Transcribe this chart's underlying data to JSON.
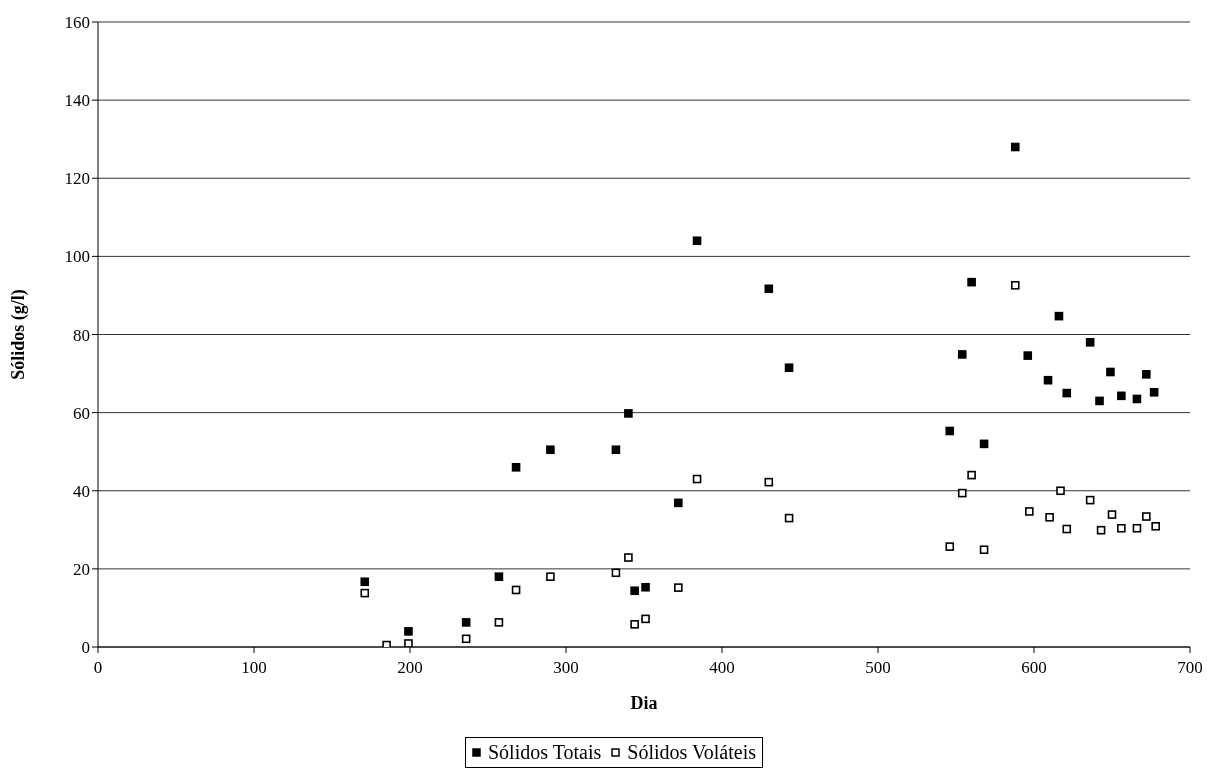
{
  "chart_data": {
    "type": "scatter",
    "xlabel": "Dia",
    "ylabel": "Sólidos (g/l)",
    "xlim": [
      0,
      700
    ],
    "xticks": [
      0,
      100,
      200,
      300,
      400,
      500,
      600,
      700
    ],
    "ylim": [
      0,
      160
    ],
    "yticks": [
      0,
      20,
      40,
      60,
      80,
      100,
      120,
      140,
      160
    ],
    "grid": "y",
    "legend": "bottom",
    "marker": "square",
    "series": [
      {
        "name": "Sólidos Totais",
        "color": "#000000",
        "x": [
          171,
          185,
          199,
          236,
          257,
          268,
          290,
          332,
          340,
          344,
          351,
          372,
          384,
          430,
          443,
          546,
          554,
          560,
          568,
          588,
          596,
          609,
          616,
          621,
          636,
          642,
          649,
          656,
          666,
          672,
          677
        ],
        "values": [
          16.7,
          null,
          4,
          6.3,
          18,
          46,
          50.5,
          50.5,
          59.8,
          14.4,
          15.3,
          36.9,
          104,
          91.7,
          71.5,
          55.3,
          74.9,
          93.4,
          52,
          128,
          74.6,
          68.3,
          84.7,
          65,
          78,
          63,
          70.4,
          64.3,
          63.5,
          69.8,
          65.2
        ]
      },
      {
        "name": "Sólidos Voláteis",
        "color": "#000000",
        "x": [
          171,
          185,
          199,
          236,
          257,
          268,
          290,
          332,
          340,
          344,
          351,
          372,
          384,
          430,
          443,
          546,
          554,
          560,
          568,
          588,
          597,
          610,
          617,
          621,
          636,
          643,
          650,
          656,
          666,
          672,
          678
        ],
        "values": [
          13.8,
          0.5,
          0.9,
          2.1,
          6.3,
          14.6,
          18,
          19,
          22.9,
          5.8,
          7.2,
          15.2,
          43,
          42.2,
          33,
          25.7,
          39.4,
          44,
          24.9,
          92.6,
          34.7,
          33.2,
          40,
          30.2,
          37.6,
          29.9,
          33.9,
          30.4,
          30.4,
          33.4,
          30.9
        ]
      }
    ]
  }
}
